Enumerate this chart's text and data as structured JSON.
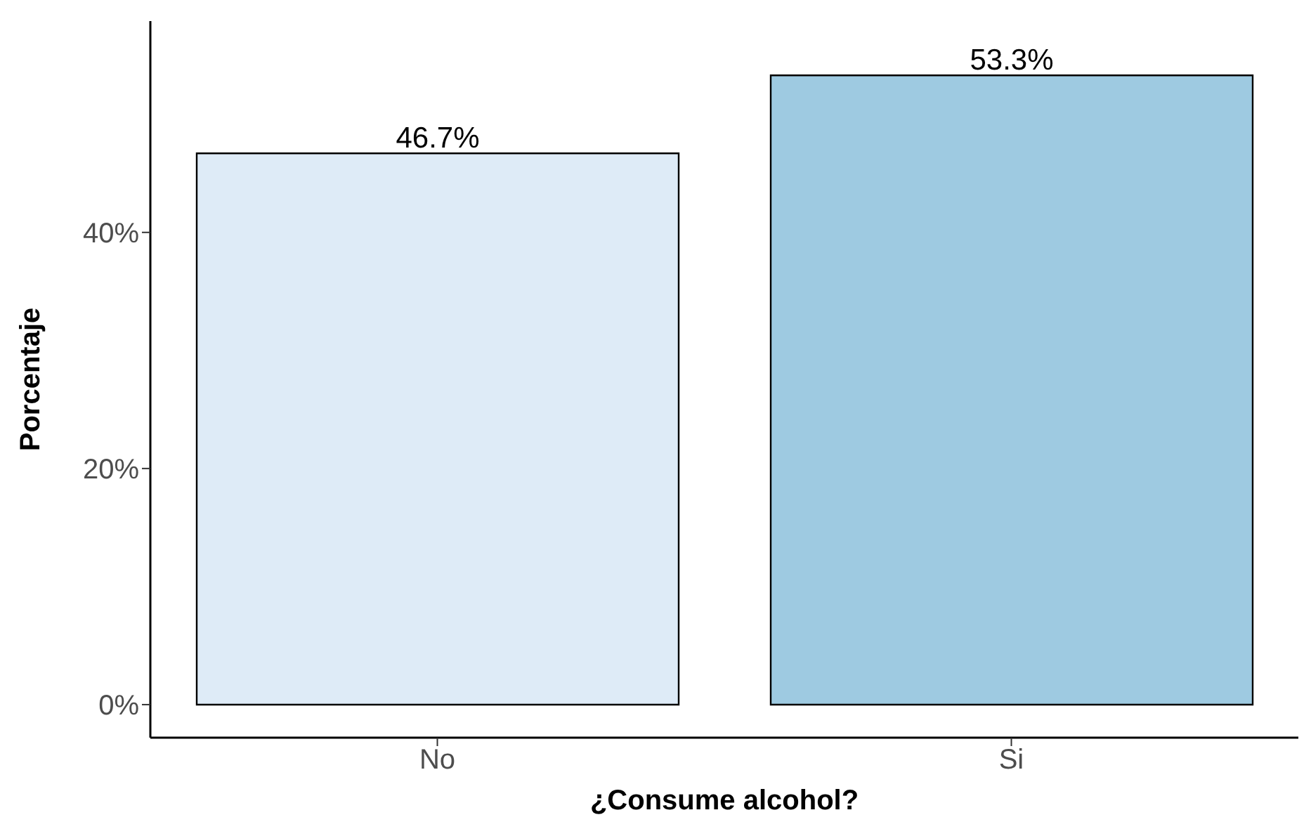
{
  "chart_data": {
    "type": "bar",
    "xlabel": "¿Consume alcohol?",
    "ylabel": "Porcentaje",
    "categories": [
      "No",
      "Si"
    ],
    "values": [
      46.7,
      53.3
    ],
    "colors": [
      "#deebf7",
      "#9ecae1"
    ],
    "value_labels": [
      "46.7%",
      "53.3%"
    ],
    "ylim": [
      -2.8,
      57.9
    ],
    "yticks": [
      {
        "value": 0,
        "label": "0%"
      },
      {
        "value": 20,
        "label": "20%"
      },
      {
        "value": 40,
        "label": "40%"
      }
    ],
    "grid": false,
    "legend": false
  }
}
